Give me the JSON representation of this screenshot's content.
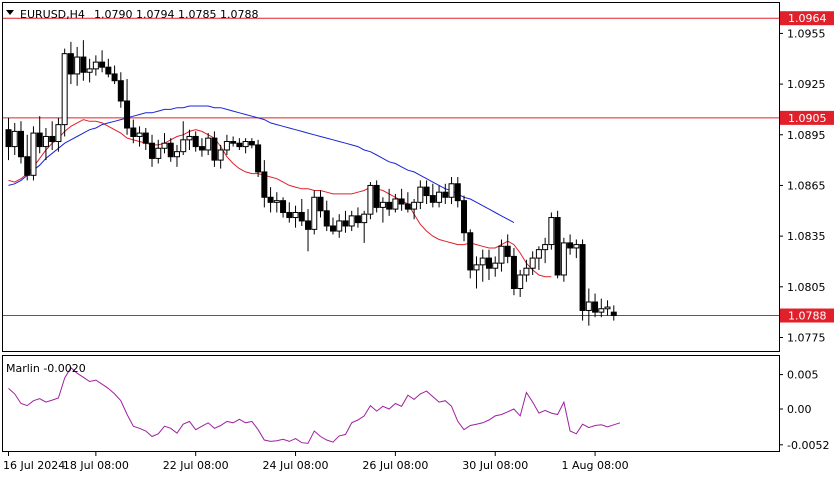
{
  "header": {
    "symbol": "EURUSD,H4",
    "ohlc": "1.0790 1.0794 1.0785 1.0788"
  },
  "colors": {
    "candle": "#000000",
    "ma_fast": "#e0202a",
    "ma_slow": "#1b24d6",
    "level_line": "#e0202a",
    "oscillator": "#a020a0",
    "background": "#ffffff"
  },
  "chart_data": [
    {
      "type": "candlestick",
      "title": "EURUSD,H4",
      "ylim": [
        1.0767,
        1.0973
      ],
      "y_ticks": [
        "1.0955",
        "1.0925",
        "1.0895",
        "1.0865",
        "1.0835",
        "1.0805",
        "1.0775"
      ],
      "levels": [
        {
          "value": 1.0964,
          "label": "1.0964"
        },
        {
          "value": 1.0905,
          "label": "1.0905"
        },
        {
          "value": 1.0788,
          "label": "1.0788"
        }
      ],
      "x_ticks": [
        "16 Jul 2024",
        "18 Jul 08:00",
        "22 Jul 08:00",
        "24 Jul 08:00",
        "26 Jul 08:00",
        "30 Jul 08:00",
        "1 Aug 08:00"
      ],
      "candles": [
        [
          1.0898,
          1.0905,
          1.088,
          1.0888
        ],
        [
          1.0888,
          1.0902,
          1.0883,
          1.0897
        ],
        [
          1.0897,
          1.0903,
          1.0878,
          1.0882
        ],
        [
          1.0882,
          1.0895,
          1.0868,
          1.0871
        ],
        [
          1.0871,
          1.09,
          1.0868,
          1.0896
        ],
        [
          1.0896,
          1.0906,
          1.0884,
          1.0888
        ],
        [
          1.0888,
          1.0899,
          1.088,
          1.0894
        ],
        [
          1.0894,
          1.0903,
          1.0886,
          1.0891
        ],
        [
          1.0891,
          1.0905,
          1.0885,
          1.0901
        ],
        [
          1.0901,
          1.0946,
          1.0894,
          1.0943
        ],
        [
          1.0943,
          1.095,
          1.0925,
          1.0931
        ],
        [
          1.0931,
          1.0947,
          1.0924,
          1.0941
        ],
        [
          1.0941,
          1.0951,
          1.0927,
          1.0932
        ],
        [
          1.0932,
          1.094,
          1.0926,
          1.0934
        ],
        [
          1.0934,
          1.0942,
          1.093,
          1.0938
        ],
        [
          1.0938,
          1.0945,
          1.0932,
          1.0935
        ],
        [
          1.0935,
          1.094,
          1.0929,
          1.0931
        ],
        [
          1.0931,
          1.0936,
          1.0925,
          1.0927
        ],
        [
          1.0927,
          1.0932,
          1.0911,
          1.0915
        ],
        [
          1.0915,
          1.0928,
          1.0895,
          1.0899
        ],
        [
          1.0899,
          1.0904,
          1.089,
          1.0894
        ],
        [
          1.0894,
          1.09,
          1.0888,
          1.0896
        ],
        [
          1.0896,
          1.0899,
          1.0886,
          1.089
        ],
        [
          1.089,
          1.0895,
          1.0876,
          1.0881
        ],
        [
          1.0881,
          1.0892,
          1.0878,
          1.0887
        ],
        [
          1.0887,
          1.0896,
          1.0884,
          1.089
        ],
        [
          1.089,
          1.0893,
          1.0879,
          1.0882
        ],
        [
          1.0882,
          1.0889,
          1.0876,
          1.0885
        ],
        [
          1.0885,
          1.0903,
          1.0883,
          1.0892
        ],
        [
          1.0892,
          1.0898,
          1.0886,
          1.0894
        ],
        [
          1.0894,
          1.0897,
          1.0885,
          1.0888
        ],
        [
          1.0888,
          1.0893,
          1.0882,
          1.0886
        ],
        [
          1.0886,
          1.0896,
          1.0883,
          1.0893
        ],
        [
          1.0893,
          1.0897,
          1.0876,
          1.088
        ],
        [
          1.088,
          1.0889,
          1.0875,
          1.0886
        ],
        [
          1.0886,
          1.0895,
          1.0883,
          1.0891
        ],
        [
          1.0891,
          1.0894,
          1.0888,
          1.089
        ],
        [
          1.089,
          1.0893,
          1.0886,
          1.0888
        ],
        [
          1.0888,
          1.0893,
          1.0884,
          1.0891
        ],
        [
          1.0891,
          1.0893,
          1.0887,
          1.0889
        ],
        [
          1.0889,
          1.0892,
          1.087,
          1.0873
        ],
        [
          1.0873,
          1.088,
          1.0852,
          1.0858
        ],
        [
          1.0858,
          1.0864,
          1.0849,
          1.0855
        ],
        [
          1.0855,
          1.0861,
          1.0849,
          1.0856
        ],
        [
          1.0856,
          1.0858,
          1.0846,
          1.0849
        ],
        [
          1.0849,
          1.0855,
          1.0843,
          1.0846
        ],
        [
          1.0846,
          1.0853,
          1.084,
          1.0849
        ],
        [
          1.0849,
          1.0857,
          1.0841,
          1.0844
        ],
        [
          1.0844,
          1.0851,
          1.0826,
          1.0839
        ],
        [
          1.0839,
          1.0862,
          1.0836,
          1.0858
        ],
        [
          1.0858,
          1.0862,
          1.0846,
          1.085
        ],
        [
          1.085,
          1.0856,
          1.0838,
          1.0841
        ],
        [
          1.0841,
          1.0846,
          1.0836,
          1.0838
        ],
        [
          1.0838,
          1.0848,
          1.0834,
          1.0844
        ],
        [
          1.0844,
          1.085,
          1.0837,
          1.0841
        ],
        [
          1.0841,
          1.085,
          1.0838,
          1.0847
        ],
        [
          1.0847,
          1.0852,
          1.084,
          1.0843
        ],
        [
          1.0843,
          1.085,
          1.0831,
          1.0848
        ],
        [
          1.0848,
          1.0867,
          1.0845,
          1.0865
        ],
        [
          1.0865,
          1.0868,
          1.0849,
          1.0852
        ],
        [
          1.0852,
          1.0858,
          1.0843,
          1.0855
        ],
        [
          1.0855,
          1.0863,
          1.0847,
          1.0851
        ],
        [
          1.0851,
          1.086,
          1.0849,
          1.0857
        ],
        [
          1.0857,
          1.0863,
          1.085,
          1.0854
        ],
        [
          1.0854,
          1.0861,
          1.0849,
          1.0851
        ],
        [
          1.0851,
          1.0857,
          1.0845,
          1.0855
        ],
        [
          1.0855,
          1.0868,
          1.0851,
          1.0864
        ],
        [
          1.0864,
          1.0868,
          1.0854,
          1.0859
        ],
        [
          1.0859,
          1.0866,
          1.0852,
          1.0855
        ],
        [
          1.0855,
          1.0865,
          1.0852,
          1.0861
        ],
        [
          1.0861,
          1.0866,
          1.0854,
          1.0858
        ],
        [
          1.0858,
          1.087,
          1.0854,
          1.0866
        ],
        [
          1.0866,
          1.087,
          1.0852,
          1.0856
        ],
        [
          1.0856,
          1.0859,
          1.0832,
          1.0837
        ],
        [
          1.0837,
          1.0839,
          1.081,
          1.0815
        ],
        [
          1.0815,
          1.0823,
          1.0804,
          1.0818
        ],
        [
          1.0818,
          1.0827,
          1.0808,
          1.0822
        ],
        [
          1.0822,
          1.0827,
          1.0809,
          1.0816
        ],
        [
          1.0816,
          1.0823,
          1.0811,
          1.0819
        ],
        [
          1.0819,
          1.0833,
          1.0814,
          1.0829
        ],
        [
          1.0829,
          1.0836,
          1.0819,
          1.0823
        ],
        [
          1.0823,
          1.0828,
          1.08,
          1.0804
        ],
        [
          1.0804,
          1.0815,
          1.0799,
          1.0812
        ],
        [
          1.0812,
          1.0821,
          1.0808,
          1.0816
        ],
        [
          1.0816,
          1.0826,
          1.0812,
          1.0822
        ],
        [
          1.0822,
          1.0829,
          1.0815,
          1.0827
        ],
        [
          1.0827,
          1.0834,
          1.0819,
          1.083
        ],
        [
          1.083,
          1.0849,
          1.0827,
          1.0846
        ],
        [
          1.0846,
          1.085,
          1.081,
          1.0812
        ],
        [
          1.0812,
          1.0834,
          1.0808,
          1.0831
        ],
        [
          1.0831,
          1.0836,
          1.0824,
          1.0828
        ],
        [
          1.0828,
          1.0833,
          1.0822,
          1.083
        ],
        [
          1.083,
          1.0833,
          1.0785,
          1.0791
        ],
        [
          1.0791,
          1.0804,
          1.0782,
          1.0796
        ],
        [
          1.0796,
          1.0801,
          1.0787,
          1.079
        ],
        [
          1.079,
          1.0798,
          1.0787,
          1.0792
        ],
        [
          1.0792,
          1.0797,
          1.0788,
          1.0793
        ],
        [
          1.079,
          1.0794,
          1.0785,
          1.0788
        ]
      ],
      "series": [
        {
          "values": [
            1.0868,
            1.0867,
            1.0869,
            1.0872,
            1.0876,
            1.0881,
            1.0886,
            1.089,
            1.0893,
            1.0897,
            1.09,
            1.0902,
            1.0904,
            1.0903,
            1.0903,
            1.0902,
            1.09,
            1.0898,
            1.0896,
            1.0893,
            1.0892,
            1.0891,
            1.089,
            1.0889,
            1.0889,
            1.089,
            1.0892,
            1.0894,
            1.0895,
            1.0897,
            1.0898,
            1.0897,
            1.0895,
            1.0893,
            1.0888,
            1.0882,
            1.0878,
            1.0875,
            1.0873,
            1.0872,
            1.0872,
            1.0871,
            1.087,
            1.0869,
            1.0867,
            1.0865,
            1.0864,
            1.0863,
            1.0863,
            1.0862,
            1.0862,
            1.0861,
            1.086,
            1.086,
            1.086,
            1.086,
            1.0861,
            1.0862,
            1.0864,
            1.0863,
            1.0862,
            1.086,
            1.0858,
            1.0856,
            1.0854,
            1.0848,
            1.0842,
            1.0838,
            1.0835,
            1.0833,
            1.0832,
            1.0831,
            1.083,
            1.083,
            1.0831,
            1.083,
            1.0829,
            1.0828,
            1.0828,
            1.083,
            1.0832,
            1.083,
            1.0825,
            1.0819,
            1.0815,
            1.0812,
            1.0811,
            1.0811
          ]
        },
        {
          "values": [
            1.0865,
            1.0866,
            1.0868,
            1.0871,
            1.0874,
            1.0877,
            1.0881,
            1.0884,
            1.0887,
            1.089,
            1.0892,
            1.0894,
            1.0896,
            1.0898,
            1.0899,
            1.0901,
            1.0902,
            1.0903,
            1.0904,
            1.0905,
            1.0906,
            1.0907,
            1.0908,
            1.0908,
            1.0909,
            1.091,
            1.091,
            1.0911,
            1.0911,
            1.0912,
            1.0912,
            1.0912,
            1.0912,
            1.0911,
            1.0911,
            1.091,
            1.0909,
            1.0908,
            1.0907,
            1.0906,
            1.0905,
            1.0904,
            1.0902,
            1.0901,
            1.09,
            1.0899,
            1.0898,
            1.0897,
            1.0896,
            1.0895,
            1.0894,
            1.0893,
            1.0892,
            1.0891,
            1.089,
            1.0889,
            1.0888,
            1.0886,
            1.0885,
            1.0883,
            1.0881,
            1.0879,
            1.0878,
            1.0876,
            1.0874,
            1.0873,
            1.0871,
            1.0869,
            1.0867,
            1.0865,
            1.0863,
            1.0862,
            1.086,
            1.0858,
            1.0857,
            1.0855,
            1.0853,
            1.0851,
            1.0849,
            1.0847,
            1.0845,
            1.0843
          ]
        }
      ]
    },
    {
      "type": "line",
      "title": "Marlin -0.0020",
      "ylim": [
        -0.0061,
        0.0077
      ],
      "y_ticks": [
        "0.005",
        "0.00",
        "-0.0052"
      ],
      "series": [
        {
          "values": [
            0.003,
            0.0022,
            0.0008,
            0.0005,
            0.0012,
            0.0015,
            0.001,
            0.0013,
            0.0016,
            0.0045,
            0.006,
            0.0052,
            0.0046,
            0.004,
            0.0042,
            0.0036,
            0.003,
            0.0022,
            0.0012,
            -0.0008,
            -0.0025,
            -0.0028,
            -0.0032,
            -0.004,
            -0.0036,
            -0.0025,
            -0.0028,
            -0.0035,
            -0.0022,
            -0.0018,
            -0.003,
            -0.0025,
            -0.002,
            -0.0028,
            -0.0024,
            -0.0018,
            -0.002,
            -0.0015,
            -0.002,
            -0.0018,
            -0.003,
            -0.0045,
            -0.0047,
            -0.0046,
            -0.0044,
            -0.0047,
            -0.0043,
            -0.0049,
            -0.005,
            -0.0032,
            -0.004,
            -0.0045,
            -0.0048,
            -0.0039,
            -0.0037,
            -0.002,
            -0.0016,
            -0.001,
            0.0005,
            -0.0003,
            0.0004,
            0.0,
            0.0008,
            0.0004,
            0.002,
            0.0014,
            0.0022,
            0.0026,
            0.0018,
            0.001,
            0.0012,
            0.0004,
            -0.0018,
            -0.003,
            -0.0024,
            -0.0022,
            -0.002,
            -0.0016,
            -0.001,
            -0.0008,
            -0.0004,
            0.0,
            -0.001,
            0.0024,
            0.001,
            -0.0006,
            -0.0002,
            -0.0006,
            -0.0008,
            0.001,
            -0.0032,
            -0.0036,
            -0.0022,
            -0.0027,
            -0.0024,
            -0.0023,
            -0.0026,
            -0.0023,
            -0.002
          ]
        }
      ]
    }
  ]
}
